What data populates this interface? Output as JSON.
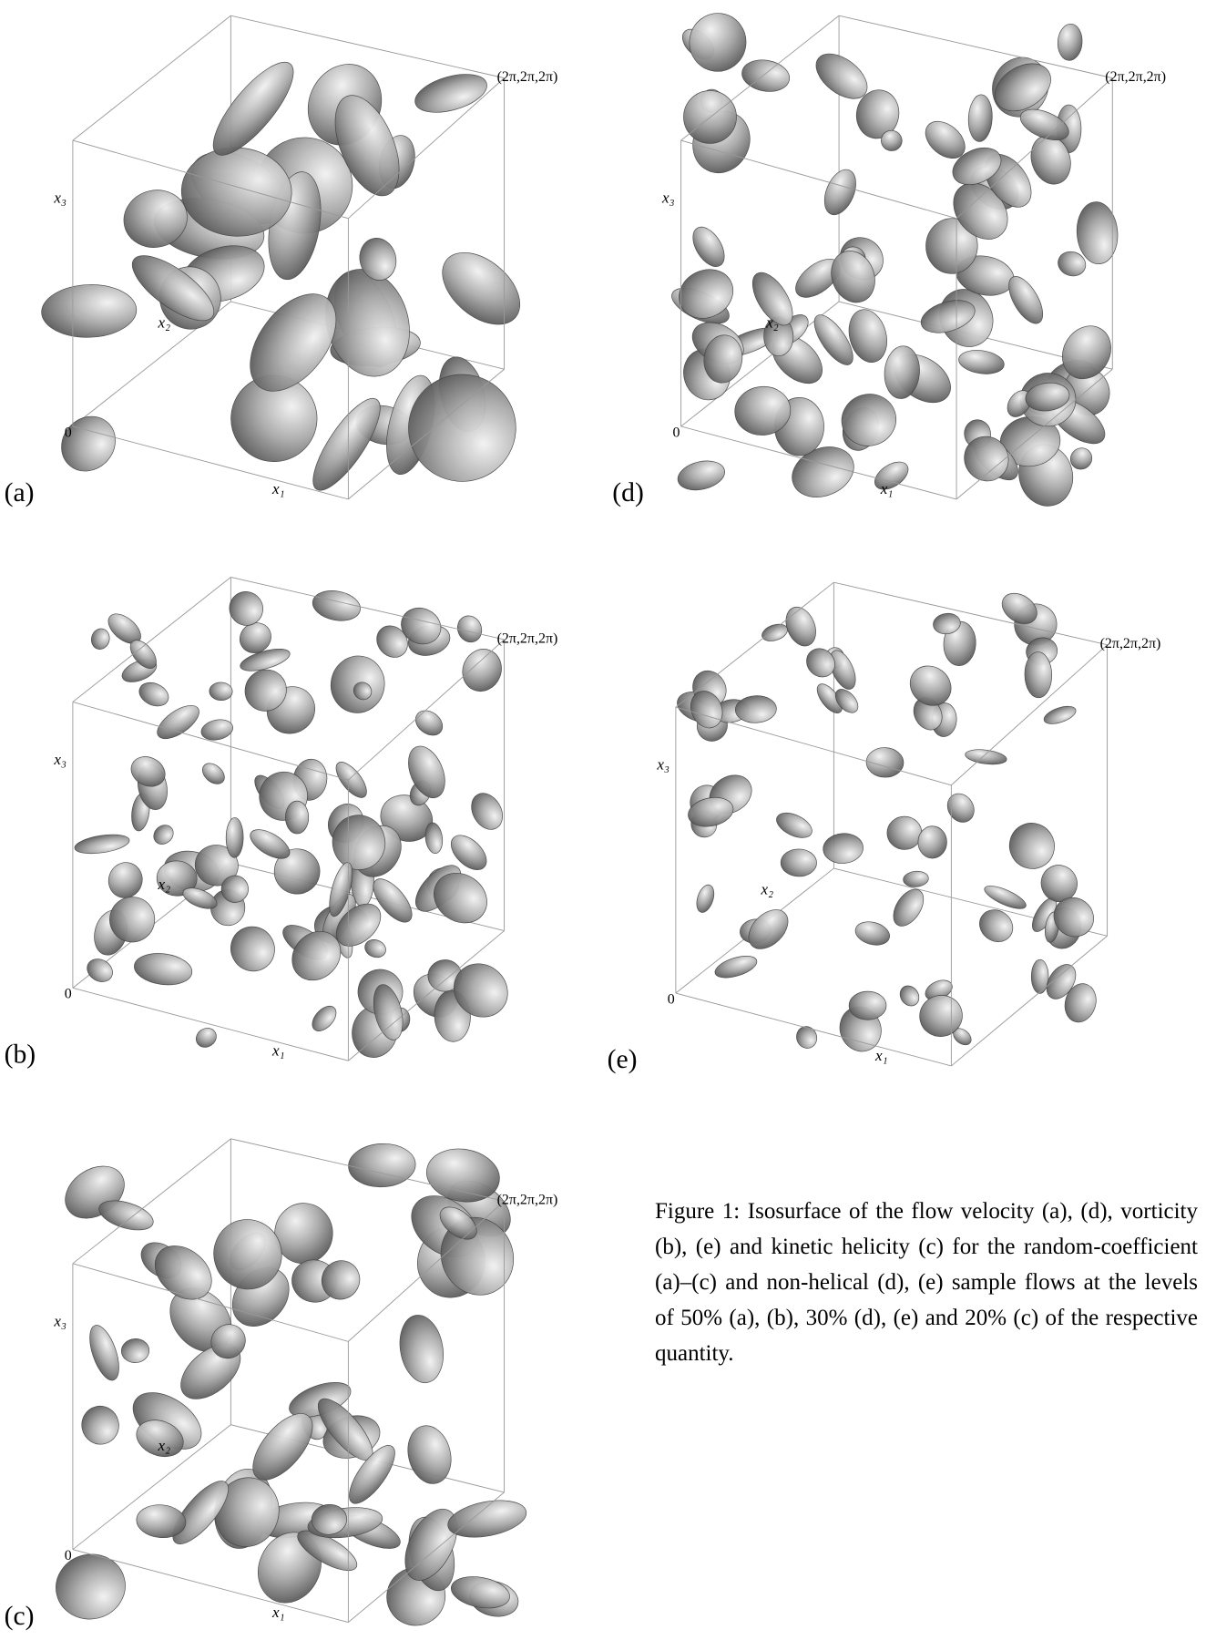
{
  "panels": [
    {
      "label": "(a)",
      "origin": "0",
      "corner": "(2π,2π,2π)",
      "x1": "x₁",
      "x2": "x₂",
      "x3": "x₃"
    },
    {
      "label": "(d)",
      "origin": "0",
      "corner": "(2π,2π,2π)",
      "x1": "x₁",
      "x2": "x₂",
      "x3": "x₃"
    },
    {
      "label": "(b)",
      "origin": "0",
      "corner": "(2π,2π,2π)",
      "x1": "x₁",
      "x2": "x₂",
      "x3": "x₃"
    },
    {
      "label": "(e)",
      "origin": "0",
      "corner": "(2π,2π,2π)",
      "x1": "x₁",
      "x2": "x₂",
      "x3": "x₃"
    },
    {
      "label": "(c)",
      "origin": "0",
      "corner": "(2π,2π,2π)",
      "x1": "x₁",
      "x2": "x₂",
      "x3": "x₃"
    }
  ],
  "caption": "Figure 1: Isosurface of the flow velocity (a), (d), vorticity (b), (e) and kinetic helicity (c) for the random-coefficient (a)–(c) and non-helical (d), (e) sample flows at the levels of 50% (a), (b), 30% (d), (e) and 20% (c) of the respective quantity."
}
